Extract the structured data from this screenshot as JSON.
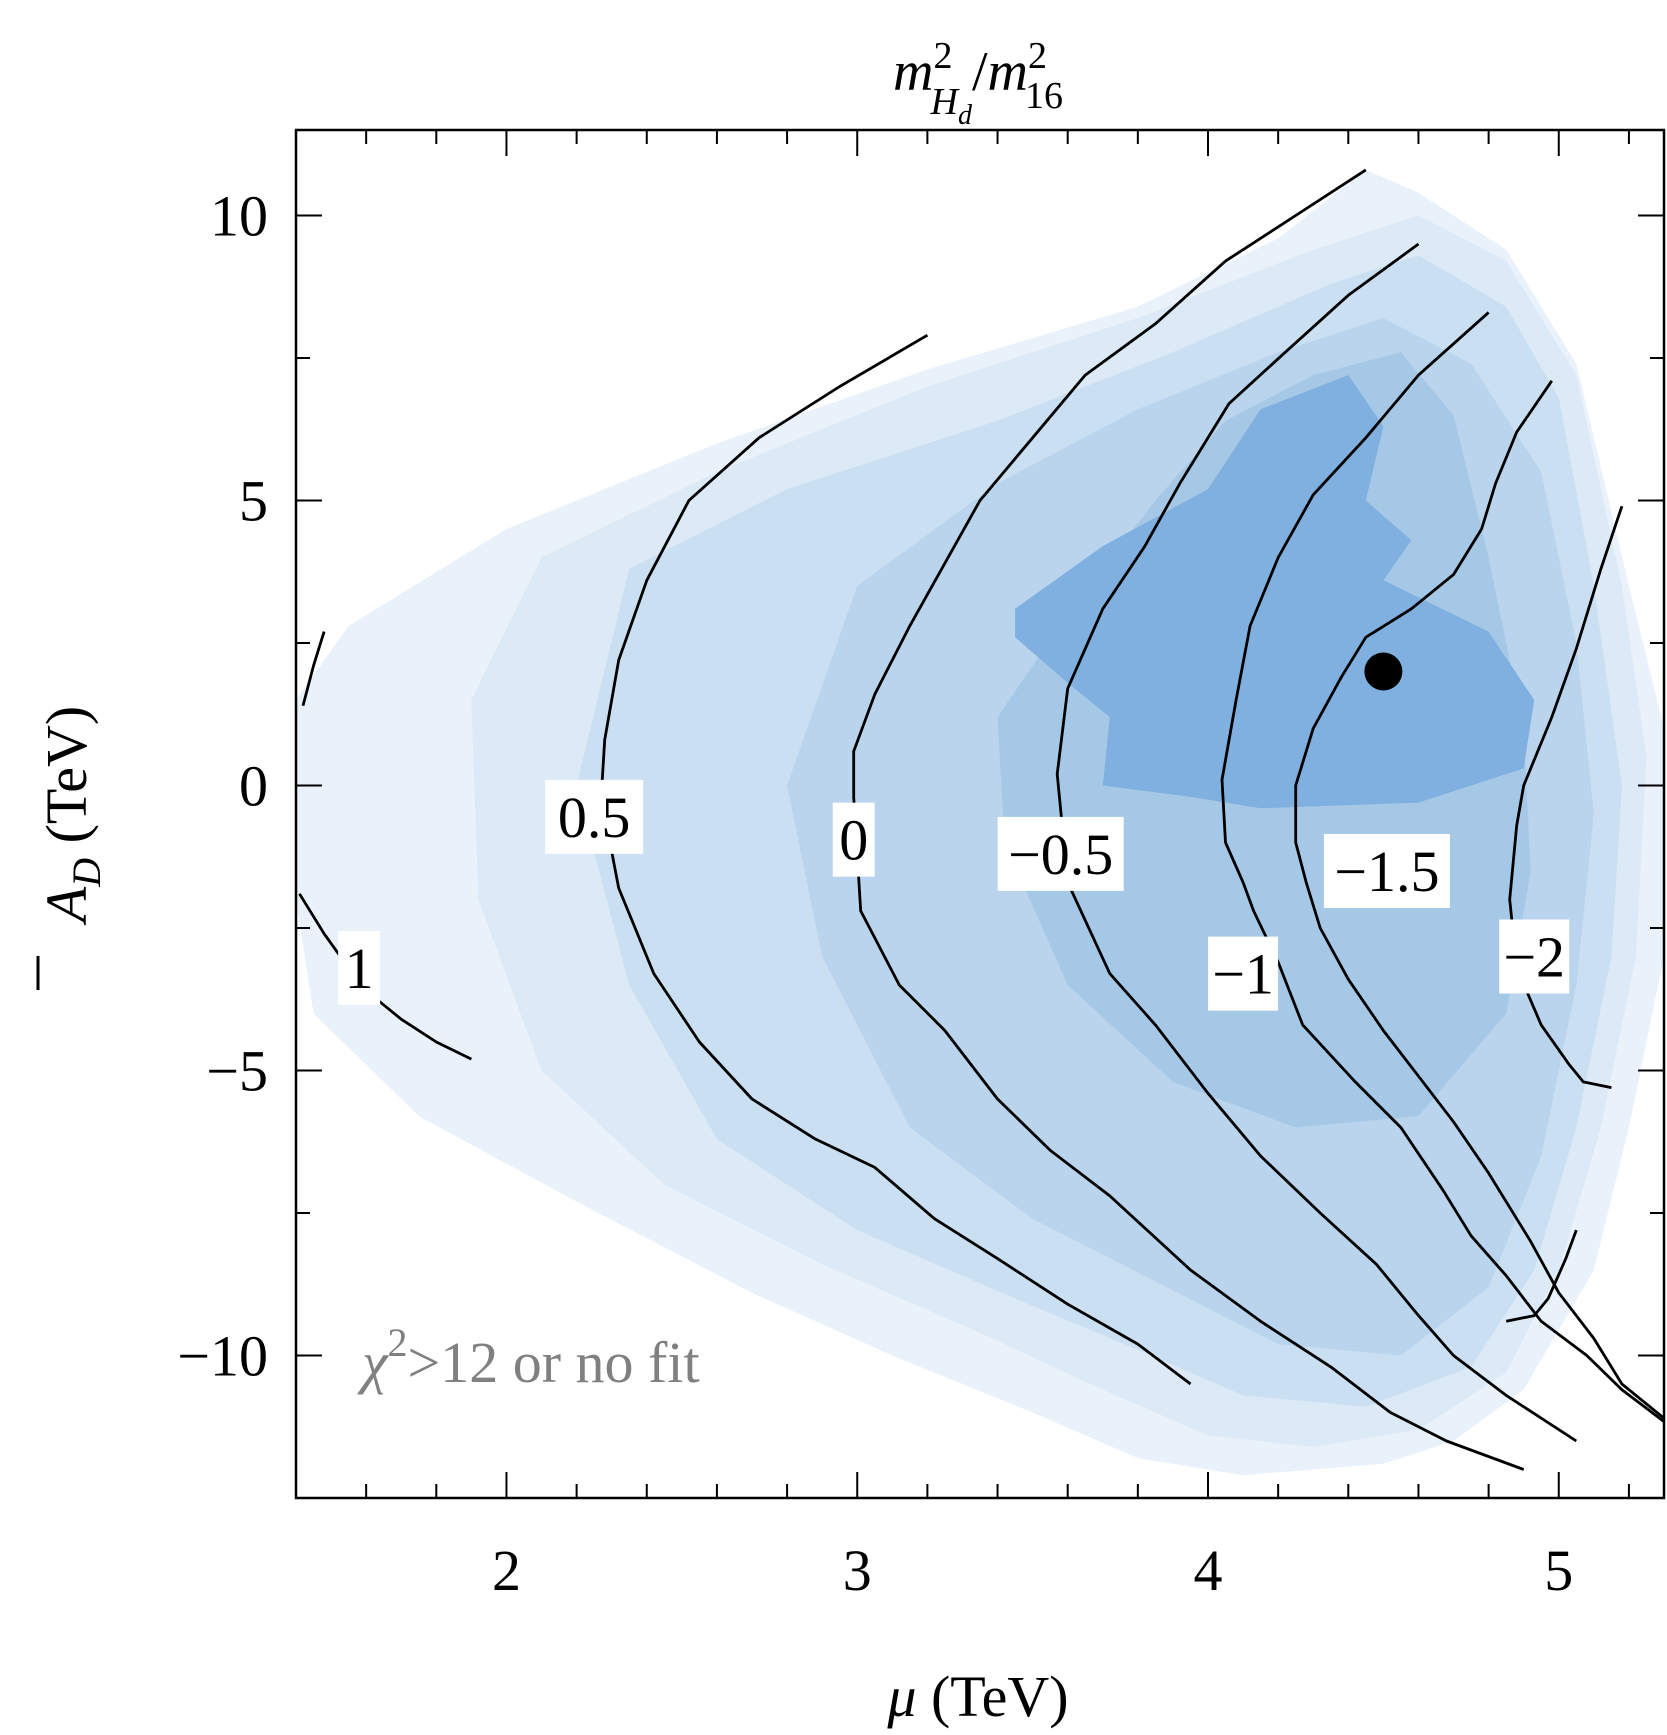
{
  "chart_data": {
    "type": "contour",
    "title": {
      "base1": "m",
      "sup1": "2",
      "sub1": "H",
      "subsub1": "d",
      "slash": "/",
      "base2": "m",
      "sup2": "2",
      "sub2": "16"
    },
    "xlabel": {
      "symbol": "μ",
      "unit": " (TeV)"
    },
    "ylabel": {
      "symbol": "A",
      "sub": "D",
      "unit": " (TeV)",
      "overline": true
    },
    "xlim": [
      1.4,
      5.3
    ],
    "ylim": [
      -12.5,
      11.5
    ],
    "x_ticks": [
      2,
      3,
      4,
      5
    ],
    "x_tick_labels": [
      "2",
      "3",
      "4",
      "5"
    ],
    "y_ticks": [
      -10,
      -5,
      0,
      5,
      10
    ],
    "y_tick_labels": [
      "−10",
      "−5",
      "0",
      "5",
      "10"
    ],
    "annotation": {
      "prefix": "χ",
      "sup": "2",
      "rest": ">12 or no fit"
    },
    "colors": {
      "fill_levels": [
        "#e9f1fa",
        "#dce9f6",
        "#cadff1",
        "#b9d4ec",
        "#a6c8e7",
        "#7fb0df"
      ],
      "contour": "#000000",
      "annotation": "#808080",
      "axis": "#000000"
    },
    "regions": [
      {
        "level": 0,
        "points": [
          [
            1.4,
            1.5
          ],
          [
            1.55,
            2.8
          ],
          [
            2.0,
            4.5
          ],
          [
            2.6,
            6.0
          ],
          [
            3.2,
            7.3
          ],
          [
            3.8,
            8.4
          ],
          [
            4.2,
            9.6
          ],
          [
            4.45,
            10.8
          ],
          [
            4.6,
            10.4
          ],
          [
            4.85,
            9.4
          ],
          [
            5.05,
            7.4
          ],
          [
            5.2,
            3.5
          ],
          [
            5.3,
            1.0
          ],
          [
            5.3,
            -3.0
          ],
          [
            5.2,
            -6.0
          ],
          [
            5.1,
            -8.5
          ],
          [
            4.9,
            -10.6
          ],
          [
            4.7,
            -11.5
          ],
          [
            4.5,
            -11.9
          ],
          [
            4.1,
            -12.1
          ],
          [
            3.8,
            -11.8
          ],
          [
            3.5,
            -11.0
          ],
          [
            3.1,
            -10.0
          ],
          [
            2.7,
            -8.9
          ],
          [
            2.2,
            -7.3
          ],
          [
            1.75,
            -5.8
          ],
          [
            1.45,
            -4.0
          ],
          [
            1.4,
            -2.0
          ]
        ]
      },
      {
        "level": 1,
        "points": [
          [
            1.9,
            1.5
          ],
          [
            2.1,
            4.0
          ],
          [
            2.6,
            5.5
          ],
          [
            3.2,
            7.0
          ],
          [
            3.8,
            8.2
          ],
          [
            4.3,
            9.4
          ],
          [
            4.6,
            10.0
          ],
          [
            4.85,
            9.2
          ],
          [
            5.05,
            7.2
          ],
          [
            5.18,
            3.5
          ],
          [
            5.25,
            0.5
          ],
          [
            5.22,
            -3.0
          ],
          [
            5.12,
            -6.0
          ],
          [
            5.0,
            -8.5
          ],
          [
            4.85,
            -10.3
          ],
          [
            4.6,
            -11.3
          ],
          [
            4.3,
            -11.6
          ],
          [
            4.0,
            -11.4
          ],
          [
            3.7,
            -10.6
          ],
          [
            3.35,
            -9.6
          ],
          [
            2.9,
            -8.4
          ],
          [
            2.45,
            -7.0
          ],
          [
            2.1,
            -5.0
          ],
          [
            1.92,
            -2.0
          ]
        ]
      },
      {
        "level": 2,
        "points": [
          [
            2.2,
            0.0
          ],
          [
            2.35,
            3.8
          ],
          [
            2.8,
            5.2
          ],
          [
            3.4,
            6.4
          ],
          [
            3.9,
            7.6
          ],
          [
            4.35,
            8.8
          ],
          [
            4.6,
            9.3
          ],
          [
            4.85,
            8.4
          ],
          [
            5.0,
            6.8
          ],
          [
            5.1,
            3.5
          ],
          [
            5.18,
            0.0
          ],
          [
            5.15,
            -3.0
          ],
          [
            5.05,
            -6.0
          ],
          [
            4.93,
            -8.5
          ],
          [
            4.75,
            -10.2
          ],
          [
            4.45,
            -10.9
          ],
          [
            4.1,
            -10.7
          ],
          [
            3.8,
            -9.9
          ],
          [
            3.45,
            -9.0
          ],
          [
            3.0,
            -7.8
          ],
          [
            2.6,
            -6.2
          ],
          [
            2.35,
            -3.5
          ]
        ]
      },
      {
        "level": 3,
        "points": [
          [
            2.8,
            0.0
          ],
          [
            3.0,
            3.5
          ],
          [
            3.4,
            5.3
          ],
          [
            3.8,
            6.6
          ],
          [
            4.2,
            7.6
          ],
          [
            4.5,
            8.2
          ],
          [
            4.75,
            7.4
          ],
          [
            4.95,
            5.5
          ],
          [
            5.05,
            2.5
          ],
          [
            5.1,
            -0.5
          ],
          [
            5.05,
            -3.5
          ],
          [
            4.95,
            -6.5
          ],
          [
            4.8,
            -8.8
          ],
          [
            4.55,
            -10.0
          ],
          [
            4.2,
            -9.8
          ],
          [
            3.85,
            -8.7
          ],
          [
            3.5,
            -7.6
          ],
          [
            3.15,
            -6.0
          ],
          [
            2.9,
            -3.0
          ]
        ]
      },
      {
        "level": 4,
        "points": [
          [
            3.4,
            1.2
          ],
          [
            3.6,
            3.0
          ],
          [
            3.85,
            5.0
          ],
          [
            4.05,
            6.4
          ],
          [
            4.3,
            7.2
          ],
          [
            4.55,
            7.6
          ],
          [
            4.7,
            6.5
          ],
          [
            4.8,
            4.0
          ],
          [
            4.9,
            1.0
          ],
          [
            4.92,
            -1.5
          ],
          [
            4.85,
            -4.0
          ],
          [
            4.6,
            -5.8
          ],
          [
            4.25,
            -6.0
          ],
          [
            3.9,
            -5.2
          ],
          [
            3.6,
            -3.5
          ],
          [
            3.42,
            -1.0
          ]
        ]
      },
      {
        "level": 5,
        "points": [
          [
            3.45,
            3.1
          ],
          [
            3.7,
            4.2
          ],
          [
            4.0,
            5.2
          ],
          [
            4.15,
            6.6
          ],
          [
            4.4,
            7.2
          ],
          [
            4.5,
            6.3
          ],
          [
            4.45,
            5.0
          ],
          [
            4.58,
            4.3
          ],
          [
            4.5,
            3.6
          ],
          [
            4.8,
            2.7
          ],
          [
            4.93,
            1.5
          ],
          [
            4.9,
            0.3
          ],
          [
            4.6,
            -0.3
          ],
          [
            4.15,
            -0.4
          ],
          [
            3.95,
            -0.2
          ],
          [
            3.7,
            0.0
          ],
          [
            3.72,
            1.2
          ],
          [
            3.6,
            1.8
          ],
          [
            3.45,
            2.6
          ]
        ]
      }
    ],
    "contours": [
      {
        "level": "1",
        "label_pos": [
          1.58,
          -3.2
        ],
        "points": [
          [
            1.42,
            1.4
          ],
          [
            1.45,
            2.1
          ],
          [
            1.48,
            2.7
          ]
        ]
      },
      {
        "level": "1",
        "label_pos": null,
        "points": [
          [
            1.41,
            -1.9
          ],
          [
            1.48,
            -2.6
          ],
          [
            1.55,
            -3.2
          ],
          [
            1.62,
            -3.7
          ],
          [
            1.7,
            -4.1
          ],
          [
            1.8,
            -4.5
          ],
          [
            1.9,
            -4.8
          ]
        ]
      },
      {
        "level": "0.5",
        "label_pos": [
          2.25,
          -0.55
        ],
        "points": [
          [
            3.2,
            7.9
          ],
          [
            2.95,
            7.0
          ],
          [
            2.72,
            6.1
          ],
          [
            2.52,
            5.0
          ],
          [
            2.4,
            3.6
          ],
          [
            2.32,
            2.2
          ],
          [
            2.28,
            0.8
          ],
          [
            2.27,
            -0.2
          ],
          [
            2.32,
            -1.8
          ],
          [
            2.42,
            -3.3
          ],
          [
            2.55,
            -4.5
          ],
          [
            2.7,
            -5.5
          ],
          [
            2.88,
            -6.2
          ],
          [
            3.05,
            -6.7
          ],
          [
            3.22,
            -7.6
          ],
          [
            3.4,
            -8.3
          ],
          [
            3.6,
            -9.1
          ],
          [
            3.8,
            -9.8
          ],
          [
            3.95,
            -10.5
          ]
        ]
      },
      {
        "level": "0",
        "label_pos": [
          2.99,
          -0.95
        ],
        "points": [
          [
            4.45,
            10.8
          ],
          [
            4.25,
            10.0
          ],
          [
            4.05,
            9.2
          ],
          [
            3.85,
            8.1
          ],
          [
            3.65,
            7.2
          ],
          [
            3.5,
            6.1
          ],
          [
            3.35,
            5.0
          ],
          [
            3.25,
            3.9
          ],
          [
            3.15,
            2.8
          ],
          [
            3.05,
            1.6
          ],
          [
            2.99,
            0.6
          ],
          [
            2.99,
            -0.2
          ],
          [
            3.01,
            -2.2
          ],
          [
            3.12,
            -3.5
          ],
          [
            3.25,
            -4.3
          ],
          [
            3.4,
            -5.5
          ],
          [
            3.55,
            -6.4
          ],
          [
            3.72,
            -7.2
          ],
          [
            3.95,
            -8.5
          ],
          [
            4.15,
            -9.4
          ],
          [
            4.35,
            -10.2
          ],
          [
            4.52,
            -11.0
          ],
          [
            4.68,
            -11.5
          ],
          [
            4.9,
            -12.0
          ]
        ]
      },
      {
        "level": "-0.5",
        "label_pos": [
          3.58,
          -1.2
        ],
        "points": [
          [
            4.6,
            9.5
          ],
          [
            4.4,
            8.6
          ],
          [
            4.22,
            7.6
          ],
          [
            4.06,
            6.7
          ],
          [
            3.92,
            5.3
          ],
          [
            3.82,
            4.2
          ],
          [
            3.7,
            3.1
          ],
          [
            3.6,
            1.7
          ],
          [
            3.57,
            0.2
          ],
          [
            3.6,
            -1.7
          ],
          [
            3.72,
            -3.3
          ],
          [
            3.85,
            -4.2
          ],
          [
            4.0,
            -5.4
          ],
          [
            4.15,
            -6.5
          ],
          [
            4.32,
            -7.5
          ],
          [
            4.48,
            -8.4
          ],
          [
            4.6,
            -9.3
          ],
          [
            4.7,
            -10.0
          ],
          [
            4.85,
            -10.7
          ],
          [
            5.05,
            -11.5
          ]
        ]
      },
      {
        "level": "-1",
        "label_pos": [
          4.1,
          -3.3
        ],
        "points": [
          [
            4.8,
            8.3
          ],
          [
            4.6,
            7.2
          ],
          [
            4.45,
            6.1
          ],
          [
            4.3,
            5.1
          ],
          [
            4.2,
            4.0
          ],
          [
            4.12,
            2.8
          ],
          [
            4.08,
            1.5
          ],
          [
            4.04,
            0.1
          ],
          [
            4.05,
            -1.0
          ],
          [
            4.1,
            -1.7
          ],
          [
            4.13,
            -2.2
          ],
          [
            4.2,
            -3.1
          ],
          [
            4.27,
            -4.2
          ],
          [
            4.42,
            -5.2
          ],
          [
            4.55,
            -6.0
          ],
          [
            4.67,
            -7.1
          ],
          [
            4.75,
            -7.9
          ],
          [
            4.85,
            -8.6
          ],
          [
            4.95,
            -9.4
          ],
          [
            5.08,
            -10.0
          ],
          [
            5.18,
            -10.6
          ],
          [
            5.33,
            -11.3
          ]
        ]
      },
      {
        "level": "-1.5",
        "label_pos": [
          4.51,
          -1.5
        ],
        "points": [
          [
            4.98,
            7.1
          ],
          [
            4.88,
            6.2
          ],
          [
            4.82,
            5.3
          ],
          [
            4.78,
            4.5
          ],
          [
            4.7,
            3.7
          ],
          [
            4.58,
            3.1
          ],
          [
            4.45,
            2.6
          ],
          [
            4.38,
            1.9
          ],
          [
            4.3,
            1.0
          ],
          [
            4.25,
            0.0
          ],
          [
            4.25,
            -1.0
          ],
          [
            4.28,
            -1.7
          ],
          [
            4.32,
            -2.5
          ],
          [
            4.4,
            -3.4
          ],
          [
            4.5,
            -4.3
          ],
          [
            4.6,
            -5.1
          ],
          [
            4.7,
            -5.9
          ],
          [
            4.8,
            -6.8
          ],
          [
            4.92,
            -8.0
          ],
          [
            5.0,
            -8.9
          ],
          [
            5.1,
            -9.7
          ],
          [
            5.18,
            -10.5
          ],
          [
            5.3,
            -11.1
          ]
        ]
      },
      {
        "level": "-2",
        "label_pos": [
          4.93,
          -3.0
        ],
        "points": [
          [
            5.18,
            4.9
          ],
          [
            5.12,
            3.8
          ],
          [
            5.05,
            2.4
          ],
          [
            4.98,
            1.2
          ],
          [
            4.9,
            0.0
          ],
          [
            4.88,
            -0.7
          ],
          [
            4.86,
            -2.0
          ],
          [
            4.88,
            -3.2
          ],
          [
            4.95,
            -4.2
          ],
          [
            5.03,
            -4.9
          ],
          [
            5.07,
            -5.2
          ],
          [
            5.15,
            -5.3
          ]
        ]
      },
      {
        "level": "-2",
        "label_pos": null,
        "points": [
          [
            5.05,
            -7.8
          ],
          [
            5.02,
            -8.3
          ],
          [
            4.97,
            -9.0
          ],
          [
            4.93,
            -9.3
          ],
          [
            4.85,
            -9.4
          ]
        ]
      }
    ],
    "best_fit_point": [
      4.5,
      2.0
    ]
  }
}
